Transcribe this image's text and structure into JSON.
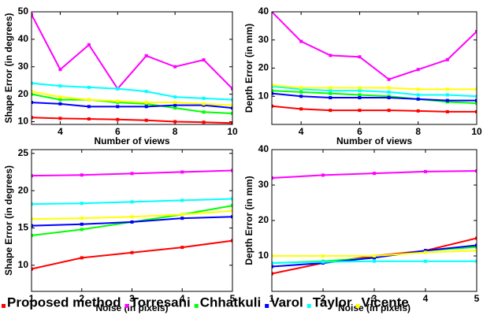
{
  "chart_data": [
    {
      "type": "line",
      "xlabel": "Number of views",
      "ylabel": "Shape Error (in degrees)",
      "x": [
        3,
        4,
        5,
        6,
        7,
        8,
        9,
        10
      ],
      "xlim": [
        3,
        10
      ],
      "xticks": [
        4,
        6,
        8,
        10
      ],
      "ylim": [
        9,
        50
      ],
      "yticks": [
        10,
        20,
        30,
        40,
        50
      ],
      "series": [
        {
          "name": "Proposed method",
          "color": "#ff0000",
          "values": [
            11.5,
            11.2,
            11,
            10.8,
            10.5,
            10,
            9.8,
            9.5
          ]
        },
        {
          "name": "Torresani",
          "color": "#ff00ff",
          "values": [
            49,
            29,
            38,
            22,
            34,
            30,
            32.5,
            22
          ]
        },
        {
          "name": "Chhatkuli",
          "color": "#00ff00",
          "values": [
            20,
            18,
            18,
            17,
            16.5,
            15,
            13.5,
            13
          ]
        },
        {
          "name": "Varol",
          "color": "#0000ff",
          "values": [
            17,
            16.5,
            15.5,
            15.5,
            15.5,
            16,
            16,
            15
          ]
        },
        {
          "name": "Taylor",
          "color": "#00ffff",
          "values": [
            24,
            23,
            22.5,
            22,
            21,
            19,
            18.5,
            18
          ]
        },
        {
          "name": "Vicente",
          "color": "#ffff00",
          "values": [
            21,
            19,
            18,
            17.5,
            17,
            17,
            16.5,
            16
          ]
        }
      ]
    },
    {
      "type": "line",
      "xlabel": "Number of views",
      "ylabel": "Depth Error (in mm)",
      "x": [
        3,
        4,
        5,
        6,
        7,
        8,
        9,
        10
      ],
      "xlim": [
        3,
        10
      ],
      "xticks": [
        4,
        6,
        8,
        10
      ],
      "ylim": [
        0,
        40
      ],
      "yticks": [
        10,
        20,
        30,
        40
      ],
      "series": [
        {
          "name": "Proposed method",
          "color": "#ff0000",
          "values": [
            6.5,
            5.5,
            5,
            5,
            5,
            4.8,
            4.5,
            4.5
          ]
        },
        {
          "name": "Torresani",
          "color": "#ff00ff",
          "values": [
            40,
            29.5,
            24.5,
            24,
            16,
            19.5,
            23,
            33
          ]
        },
        {
          "name": "Chhatkuli",
          "color": "#00ff00",
          "values": [
            12,
            11.5,
            11,
            10.5,
            10,
            9,
            8,
            7.5
          ]
        },
        {
          "name": "Varol",
          "color": "#0000ff",
          "values": [
            11,
            10,
            9.5,
            9.5,
            9.5,
            9,
            8.5,
            8.5
          ]
        },
        {
          "name": "Taylor",
          "color": "#00ffff",
          "values": [
            13.5,
            12.5,
            12,
            12,
            11.5,
            10.5,
            10.5,
            10
          ]
        },
        {
          "name": "Vicente",
          "color": "#ffff00",
          "values": [
            14,
            13,
            13,
            13,
            13,
            12.5,
            12.5,
            12.5
          ]
        }
      ]
    },
    {
      "type": "line",
      "xlabel": "Noise (in pixels)",
      "ylabel": "Shape Error (in degrees)",
      "x": [
        1,
        2,
        3,
        4,
        5
      ],
      "xlim": [
        1,
        5
      ],
      "xticks": [
        1,
        2,
        3,
        4,
        5
      ],
      "ylim": [
        6.5,
        25.5
      ],
      "yticks": [
        10,
        15,
        20,
        25
      ],
      "series": [
        {
          "name": "Proposed method",
          "color": "#ff0000",
          "values": [
            9.5,
            11,
            11.7,
            12.4,
            13.3
          ]
        },
        {
          "name": "Torresani",
          "color": "#ff00ff",
          "values": [
            22,
            22.1,
            22.3,
            22.5,
            22.7
          ]
        },
        {
          "name": "Chhatkuli",
          "color": "#00ff00",
          "values": [
            14,
            14.8,
            15.8,
            16.8,
            18
          ]
        },
        {
          "name": "Varol",
          "color": "#0000ff",
          "values": [
            15.3,
            15.5,
            15.8,
            16.3,
            16.5
          ]
        },
        {
          "name": "Taylor",
          "color": "#00ffff",
          "values": [
            18.2,
            18.3,
            18.5,
            18.7,
            18.9
          ]
        },
        {
          "name": "Vicente",
          "color": "#ffff00",
          "values": [
            16.2,
            16.3,
            16.5,
            16.8,
            17.3
          ]
        }
      ]
    },
    {
      "type": "line",
      "xlabel": "Noise (in pixels)",
      "ylabel": "Depth Error (in mm)",
      "x": [
        1,
        2,
        3,
        4,
        5
      ],
      "xlim": [
        1,
        5
      ],
      "xticks": [
        1,
        2,
        3,
        4,
        5
      ],
      "ylim": [
        0,
        40
      ],
      "yticks": [
        10,
        20,
        30,
        40
      ],
      "series": [
        {
          "name": "Proposed method",
          "color": "#ff0000",
          "values": [
            5,
            8,
            10,
            11.5,
            15
          ]
        },
        {
          "name": "Torresani",
          "color": "#ff00ff",
          "values": [
            32,
            32.8,
            33.3,
            33.8,
            34
          ]
        },
        {
          "name": "Chhatkuli",
          "color": "#00ff00",
          "values": [
            8,
            8.5,
            9.5,
            11.5,
            12.5
          ]
        },
        {
          "name": "Varol",
          "color": "#0000ff",
          "values": [
            7,
            8,
            9.5,
            11.5,
            13
          ]
        },
        {
          "name": "Taylor",
          "color": "#00ffff",
          "values": [
            8,
            8.3,
            8.5,
            8.5,
            8.5
          ]
        },
        {
          "name": "Vicente",
          "color": "#ffff00",
          "values": [
            10,
            10,
            10,
            11,
            11.5
          ]
        }
      ]
    }
  ]
}
